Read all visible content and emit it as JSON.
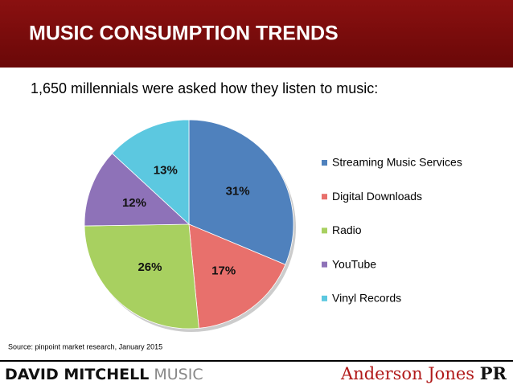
{
  "chart_data": {
    "type": "pie",
    "title": "MUSIC CONSUMPTION TRENDS",
    "subtitle": "1,650 millennials were asked how they listen to music:",
    "categories": [
      "Streaming Music Services",
      "Digital Downloads",
      "Radio",
      "YouTube",
      "Vinyl Records"
    ],
    "values": [
      31,
      17,
      26,
      12,
      13
    ],
    "value_labels": [
      "31%",
      "17%",
      "26%",
      "12%",
      "13%"
    ],
    "colors": [
      "#4f81bd",
      "#e8706c",
      "#a8d060",
      "#8e72b8",
      "#5cc8e0"
    ],
    "legend": "right",
    "source": "Source: pinpoint market research, January 2015"
  },
  "footer": {
    "left_bold": "DAVID MITCHELL",
    "left_light": "MUSIC",
    "right_main": "Anderson Jones",
    "right_suffix": "PR"
  }
}
